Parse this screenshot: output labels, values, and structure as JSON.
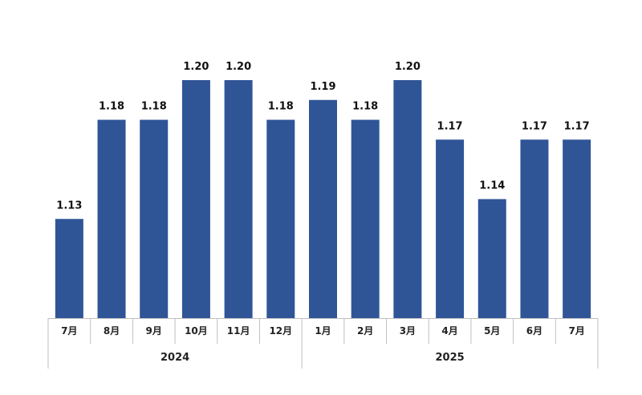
{
  "chart_data": {
    "type": "bar",
    "categories": [
      "7月",
      "8月",
      "9月",
      "10月",
      "11月",
      "12月",
      "1月",
      "2月",
      "3月",
      "4月",
      "5月",
      "6月",
      "7月"
    ],
    "values": [
      1.13,
      1.18,
      1.18,
      1.2,
      1.2,
      1.18,
      1.19,
      1.18,
      1.2,
      1.17,
      1.14,
      1.17,
      1.17
    ],
    "value_labels": [
      "1.13",
      "1.18",
      "1.18",
      "1.20",
      "1.20",
      "1.18",
      "1.19",
      "1.18",
      "1.20",
      "1.17",
      "1.14",
      "1.17",
      "1.17"
    ],
    "groups": [
      {
        "label": "2024",
        "count": 6
      },
      {
        "label": "2025",
        "count": 7
      }
    ],
    "ylim": [
      1.08,
      1.2
    ],
    "grid": false,
    "legend": "none",
    "bar_color": "#2F5597",
    "axis_color": "#BFBFBF"
  }
}
